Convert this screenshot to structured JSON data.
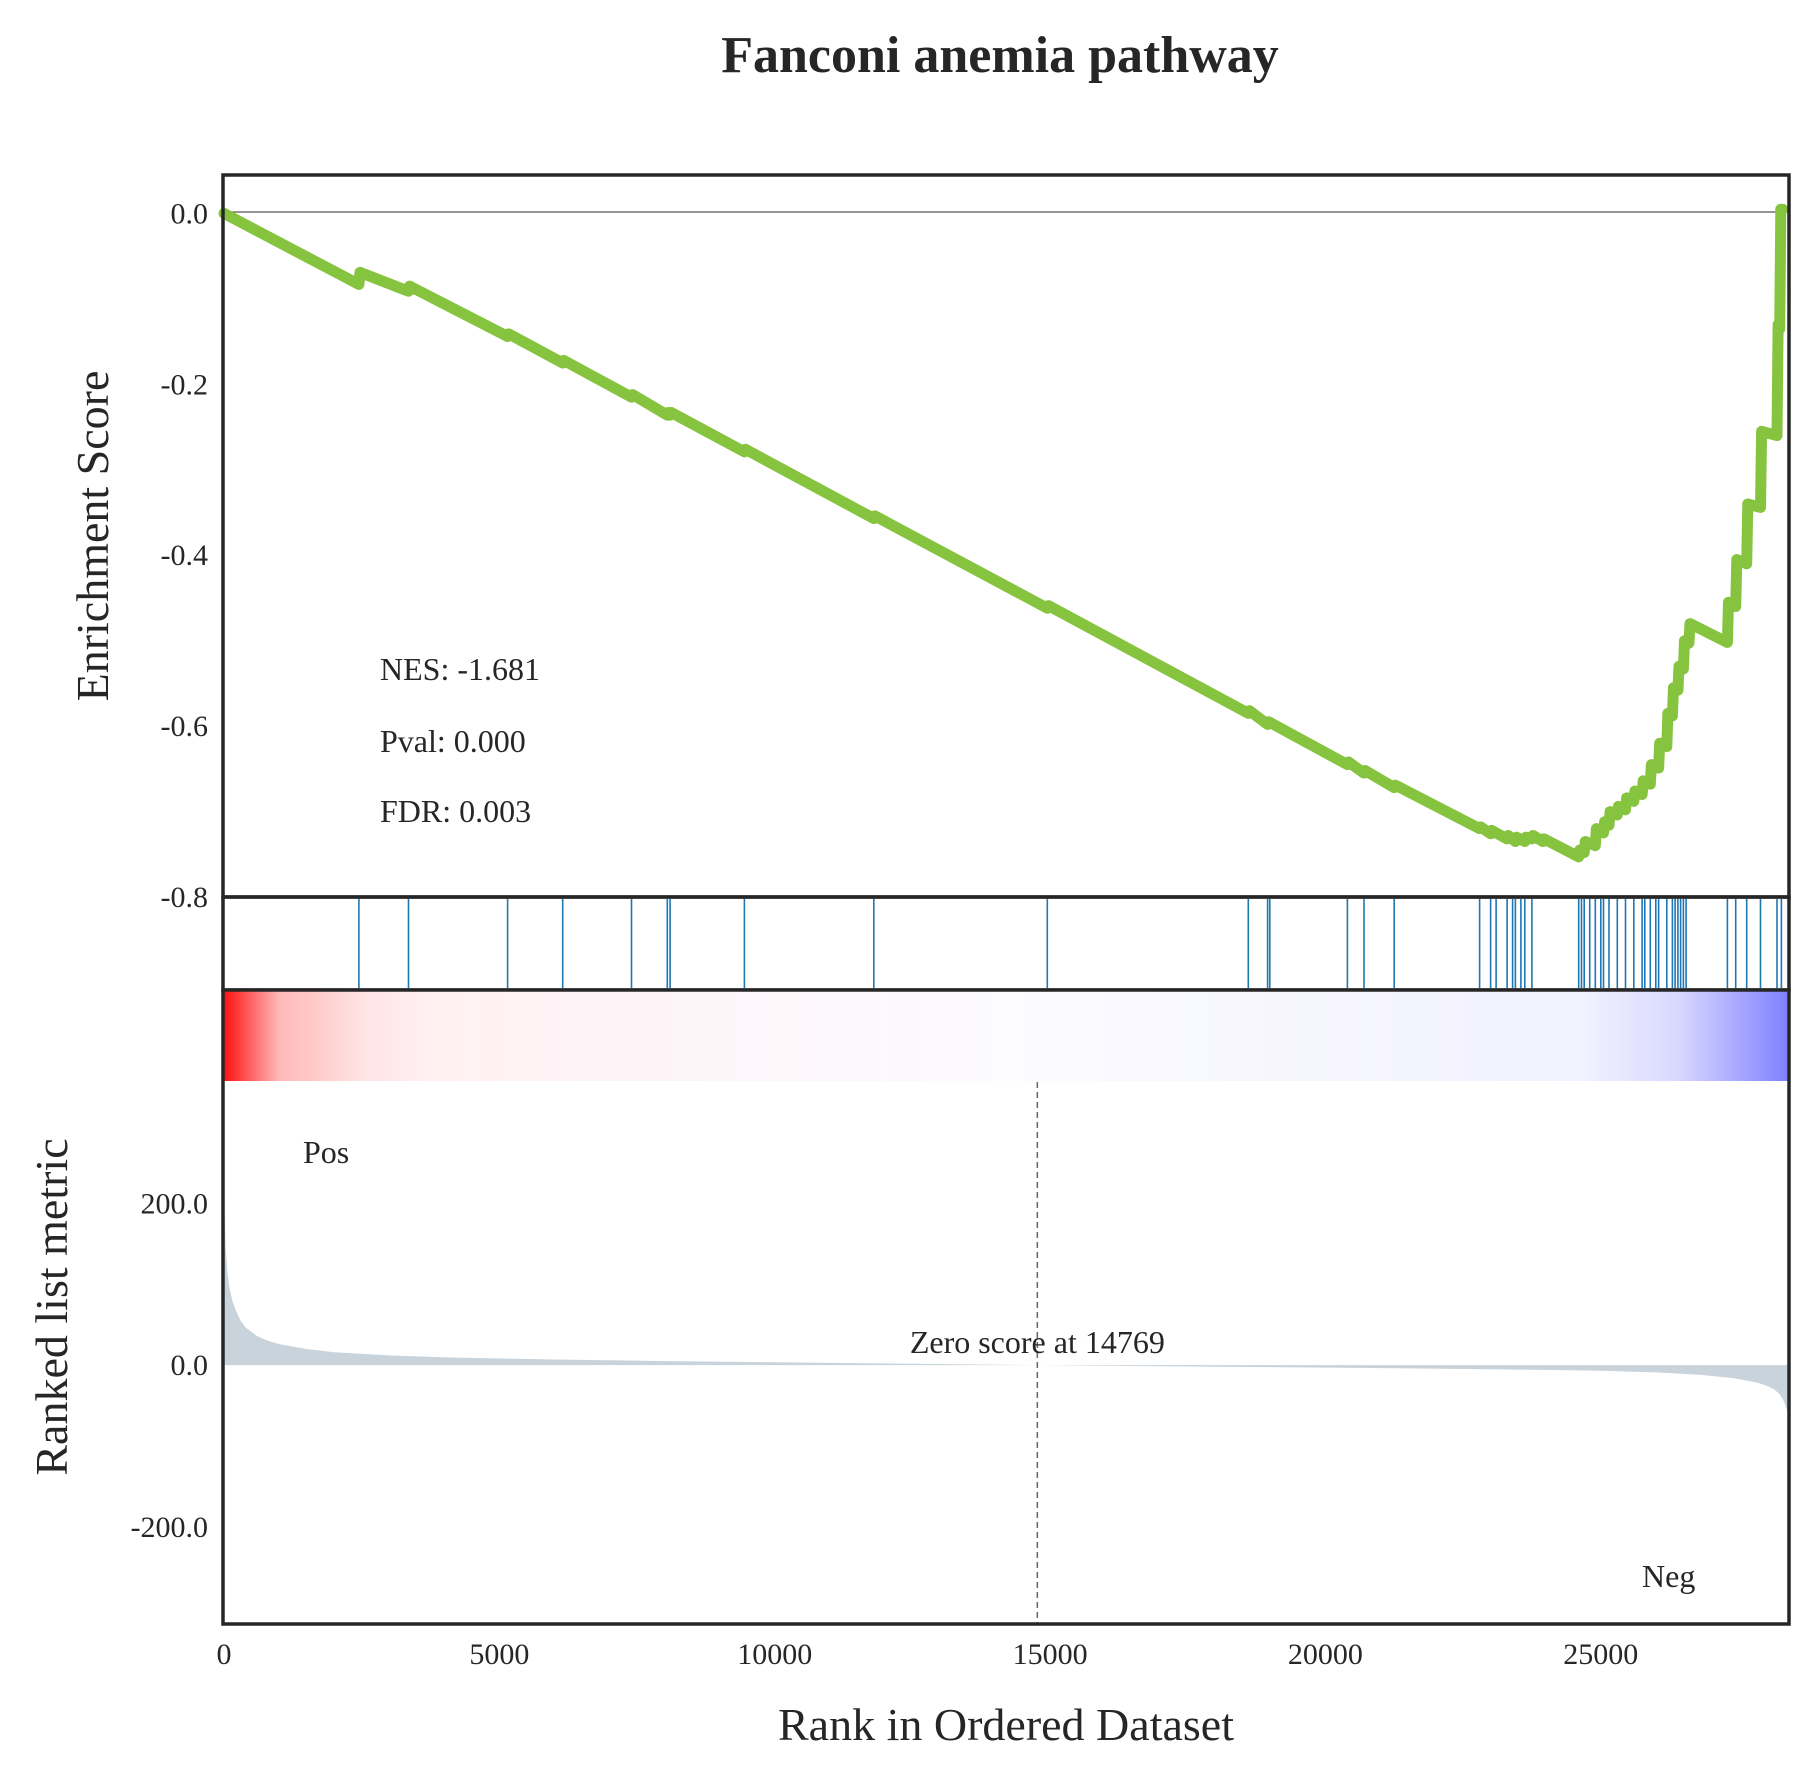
{
  "chart_data": {
    "type": "line",
    "title": "Fanconi anemia pathway",
    "xlabel": "Rank in Ordered Dataset",
    "xlim": [
      0,
      28400
    ],
    "x_ticks": [
      {
        "value": 0,
        "label": "0"
      },
      {
        "value": 5000,
        "label": "5000"
      },
      {
        "value": 10000,
        "label": "10000"
      },
      {
        "value": 15000,
        "label": "15000"
      },
      {
        "value": 20000,
        "label": "20000"
      },
      {
        "value": 25000,
        "label": "25000"
      }
    ],
    "enrichment": {
      "ylabel": "Enrichment Score",
      "ylim": [
        -0.8,
        0.045
      ],
      "y_ticks": [
        {
          "value": 0.0,
          "label": "0.0"
        },
        {
          "value": -0.2,
          "label": "-0.2"
        },
        {
          "value": -0.4,
          "label": "-0.4"
        },
        {
          "value": -0.6,
          "label": "-0.6"
        },
        {
          "value": -0.8,
          "label": "-0.8"
        }
      ],
      "color": "#86c440",
      "x": [
        0,
        2450,
        2470,
        3350,
        3370,
        5150,
        5170,
        6150,
        6170,
        7400,
        7420,
        8050,
        8070,
        8100,
        8120,
        9450,
        9470,
        11800,
        11820,
        14950,
        14970,
        18600,
        18620,
        18950,
        18970,
        20400,
        20420,
        20700,
        20720,
        21250,
        21270,
        22800,
        22820,
        23000,
        23020,
        23300,
        23320,
        23450,
        23470,
        23620,
        23640,
        23750,
        23770,
        23950,
        23970,
        24600,
        24620,
        24700,
        24720,
        24900,
        24920,
        25050,
        25070,
        25150,
        25170,
        25300,
        25320,
        25450,
        25470,
        25600,
        25620,
        25750,
        25770,
        25900,
        25920,
        26050,
        26070,
        26200,
        26220,
        26300,
        26320,
        26400,
        26420,
        26500,
        26520,
        26600,
        26620,
        27300,
        27320,
        27450,
        27470,
        27650,
        27670,
        27900,
        27920,
        28200,
        28220,
        28250,
        28270,
        28300
      ],
      "y": [
        0.0,
        -0.083,
        -0.069,
        -0.091,
        -0.085,
        -0.144,
        -0.141,
        -0.175,
        -0.172,
        -0.215,
        -0.212,
        -0.236,
        -0.233,
        -0.236,
        -0.233,
        -0.279,
        -0.276,
        -0.357,
        -0.354,
        -0.462,
        -0.459,
        -0.585,
        -0.582,
        -0.598,
        -0.595,
        -0.645,
        -0.642,
        -0.655,
        -0.652,
        -0.672,
        -0.669,
        -0.72,
        -0.718,
        -0.726,
        -0.722,
        -0.732,
        -0.728,
        -0.735,
        -0.73,
        -0.735,
        -0.73,
        -0.732,
        -0.728,
        -0.735,
        -0.732,
        -0.753,
        -0.745,
        -0.748,
        -0.735,
        -0.74,
        -0.72,
        -0.725,
        -0.712,
        -0.716,
        -0.7,
        -0.704,
        -0.694,
        -0.698,
        -0.684,
        -0.688,
        -0.676,
        -0.68,
        -0.664,
        -0.668,
        -0.645,
        -0.649,
        -0.62,
        -0.624,
        -0.585,
        -0.588,
        -0.555,
        -0.558,
        -0.53,
        -0.533,
        -0.5,
        -0.503,
        -0.48,
        -0.502,
        -0.455,
        -0.46,
        -0.405,
        -0.41,
        -0.34,
        -0.344,
        -0.255,
        -0.26,
        -0.13,
        -0.135,
        0.005,
        0.005
      ],
      "annotations": {
        "nes": "NES: -1.681",
        "pval": "Pval: 0.000",
        "fdr": "FDR: 0.003"
      }
    },
    "hits": {
      "color": "#1f77b4",
      "positions": [
        2450,
        3350,
        5150,
        6150,
        7400,
        8050,
        8100,
        9450,
        11800,
        14950,
        18600,
        18950,
        18990,
        20400,
        20700,
        21250,
        22800,
        23000,
        23100,
        23300,
        23400,
        23450,
        23550,
        23620,
        23750,
        24600,
        24650,
        24700,
        24800,
        24900,
        25000,
        25050,
        25150,
        25300,
        25450,
        25600,
        25750,
        25800,
        25900,
        26000,
        26050,
        26200,
        26300,
        26350,
        26400,
        26450,
        26500,
        26550,
        27300,
        27450,
        27650,
        27900,
        28200,
        28280
      ]
    },
    "ranked_metric": {
      "ylabel": "Ranked list metric",
      "ylim": [
        -320,
        350
      ],
      "y_ticks": [
        {
          "value": 200,
          "label": "200.0"
        },
        {
          "value": 0,
          "label": "0.0"
        },
        {
          "value": -200,
          "label": "-200.0"
        }
      ],
      "fill_color": "#c8d3dc",
      "x": [
        0,
        5,
        15,
        30,
        60,
        100,
        150,
        200,
        300,
        400,
        600,
        800,
        1000,
        1500,
        2000,
        3000,
        4000,
        6000,
        8000,
        10000,
        12000,
        14769,
        17000,
        20000,
        23000,
        25000,
        26000,
        26800,
        27400,
        27800,
        28000,
        28150,
        28250,
        28320,
        28380,
        28400
      ],
      "y": [
        280,
        230,
        180,
        145,
        115,
        95,
        80,
        70,
        55,
        46,
        36,
        30,
        26,
        20,
        16,
        12,
        9.5,
        7,
        5,
        3.5,
        2,
        0,
        -1.5,
        -3,
        -5,
        -7,
        -9,
        -12,
        -16,
        -21,
        -25,
        -30,
        -36,
        -44,
        -55,
        -62
      ],
      "zero_score_x": 14769,
      "zero_score_label": "Zero score at 14769",
      "pos_label": "Pos",
      "neg_label": "Neg",
      "pos_color": "#ff0000",
      "neg_color": "#0000ff"
    }
  }
}
